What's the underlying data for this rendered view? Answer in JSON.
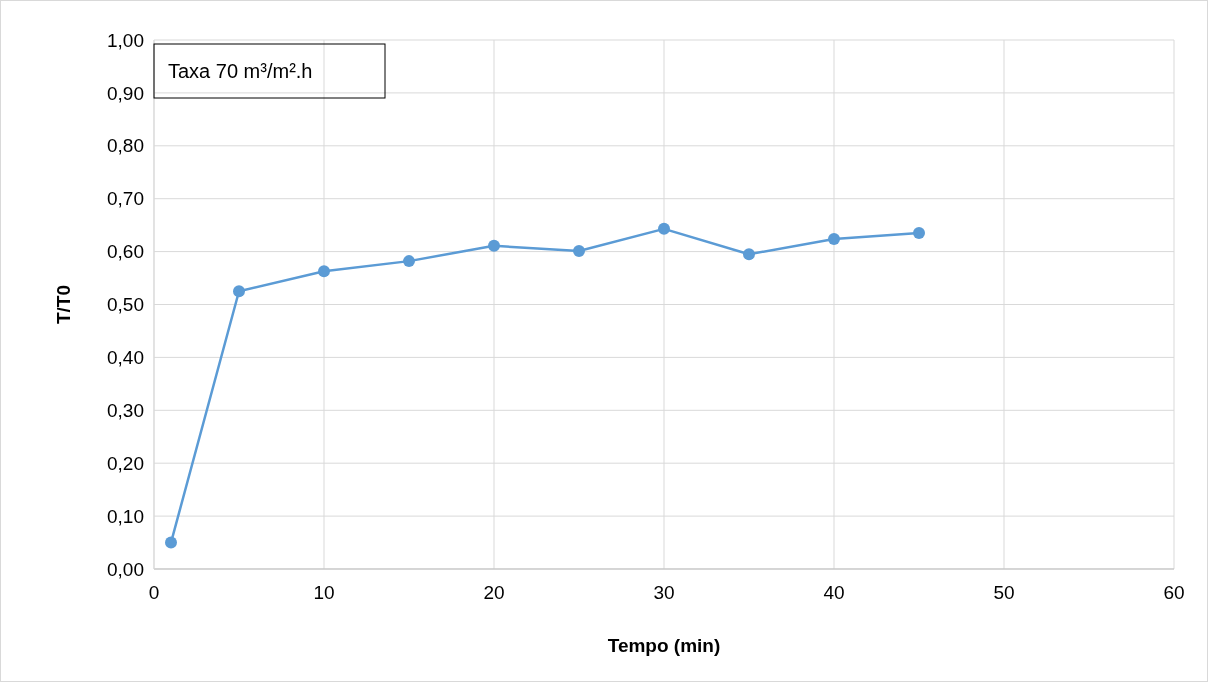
{
  "chart_data": {
    "type": "line",
    "xlabel": "Tempo (min)",
    "ylabel": "T/T0",
    "annotations": [
      "Taxa 70 m³/m².h"
    ],
    "x": [
      1,
      5,
      10,
      15,
      20,
      25,
      30,
      35,
      40,
      45
    ],
    "series": [
      {
        "color": "#5b9bd5",
        "values": [
          0.05,
          0.525,
          0.563,
          0.582,
          0.611,
          0.601,
          0.643,
          0.595,
          0.624,
          0.635
        ]
      }
    ],
    "xlim": [
      0,
      60
    ],
    "xticks": [
      0,
      10,
      20,
      30,
      40,
      50,
      60
    ],
    "ylim": [
      0,
      1
    ],
    "yticks": [
      {
        "value": 0,
        "label": "0,00"
      },
      {
        "value": 0.1,
        "label": "0,10"
      },
      {
        "value": 0.2,
        "label": "0,20"
      },
      {
        "value": 0.3,
        "label": "0,30"
      },
      {
        "value": 0.4,
        "label": "0,40"
      },
      {
        "value": 0.5,
        "label": "0,50"
      },
      {
        "value": 0.6,
        "label": "0,60"
      },
      {
        "value": 0.7,
        "label": "0,70"
      },
      {
        "value": 0.8,
        "label": "0,80"
      },
      {
        "value": 0.9,
        "label": "0,90"
      },
      {
        "value": 1,
        "label": "1,00"
      }
    ],
    "grid": true,
    "marker": "circle",
    "line_style": "solid"
  }
}
